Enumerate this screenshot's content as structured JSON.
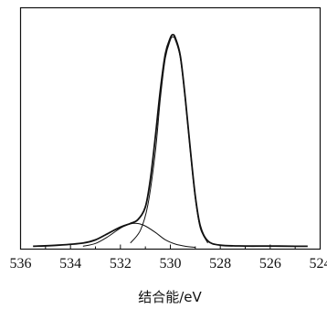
{
  "chart_data": {
    "type": "line",
    "title": "",
    "xlabel": "结合能/eV",
    "ylabel": "",
    "xlim": [
      536,
      524
    ],
    "x_reversed": true,
    "y_ticks_shown": false,
    "grid": false,
    "legend": "none",
    "x_ticks": [
      536,
      534,
      532,
      530,
      528,
      526,
      524
    ],
    "x_tick_labels": [
      "536",
      "534",
      "532",
      "530",
      "528",
      "526",
      "524"
    ],
    "ylim": [
      0,
      1.0
    ],
    "series": [
      {
        "role": "envelope",
        "x": [
          535.5,
          534.5,
          533.5,
          533.0,
          532.5,
          532.0,
          531.6,
          531.3,
          531.0,
          530.8,
          530.6,
          530.4,
          530.2,
          530.0,
          529.9,
          529.8,
          529.6,
          529.4,
          529.2,
          529.0,
          528.8,
          528.5,
          528.0,
          527.0,
          526.0,
          525.0,
          524.5
        ],
        "y": [
          0.005,
          0.01,
          0.02,
          0.035,
          0.065,
          0.095,
          0.112,
          0.13,
          0.19,
          0.32,
          0.52,
          0.74,
          0.91,
          0.985,
          1.0,
          0.985,
          0.9,
          0.7,
          0.46,
          0.24,
          0.1,
          0.03,
          0.01,
          0.006,
          0.006,
          0.005,
          0.005
        ]
      },
      {
        "role": "component",
        "x": [
          533.5,
          533.0,
          532.5,
          532.0,
          531.6,
          531.3,
          531.0,
          530.6,
          530.2,
          529.8,
          529.4,
          529.0
        ],
        "y": [
          0.005,
          0.018,
          0.05,
          0.09,
          0.11,
          0.112,
          0.1,
          0.07,
          0.035,
          0.015,
          0.005,
          0.0
        ]
      },
      {
        "role": "component",
        "x": [
          531.6,
          531.2,
          530.9,
          530.6,
          530.4,
          530.2,
          530.0,
          529.9,
          529.8,
          529.6,
          529.4,
          529.2,
          529.0,
          528.8,
          528.5
        ],
        "y": [
          0.02,
          0.08,
          0.2,
          0.45,
          0.7,
          0.89,
          0.975,
          0.99,
          0.975,
          0.89,
          0.69,
          0.45,
          0.23,
          0.09,
          0.02
        ]
      }
    ]
  }
}
